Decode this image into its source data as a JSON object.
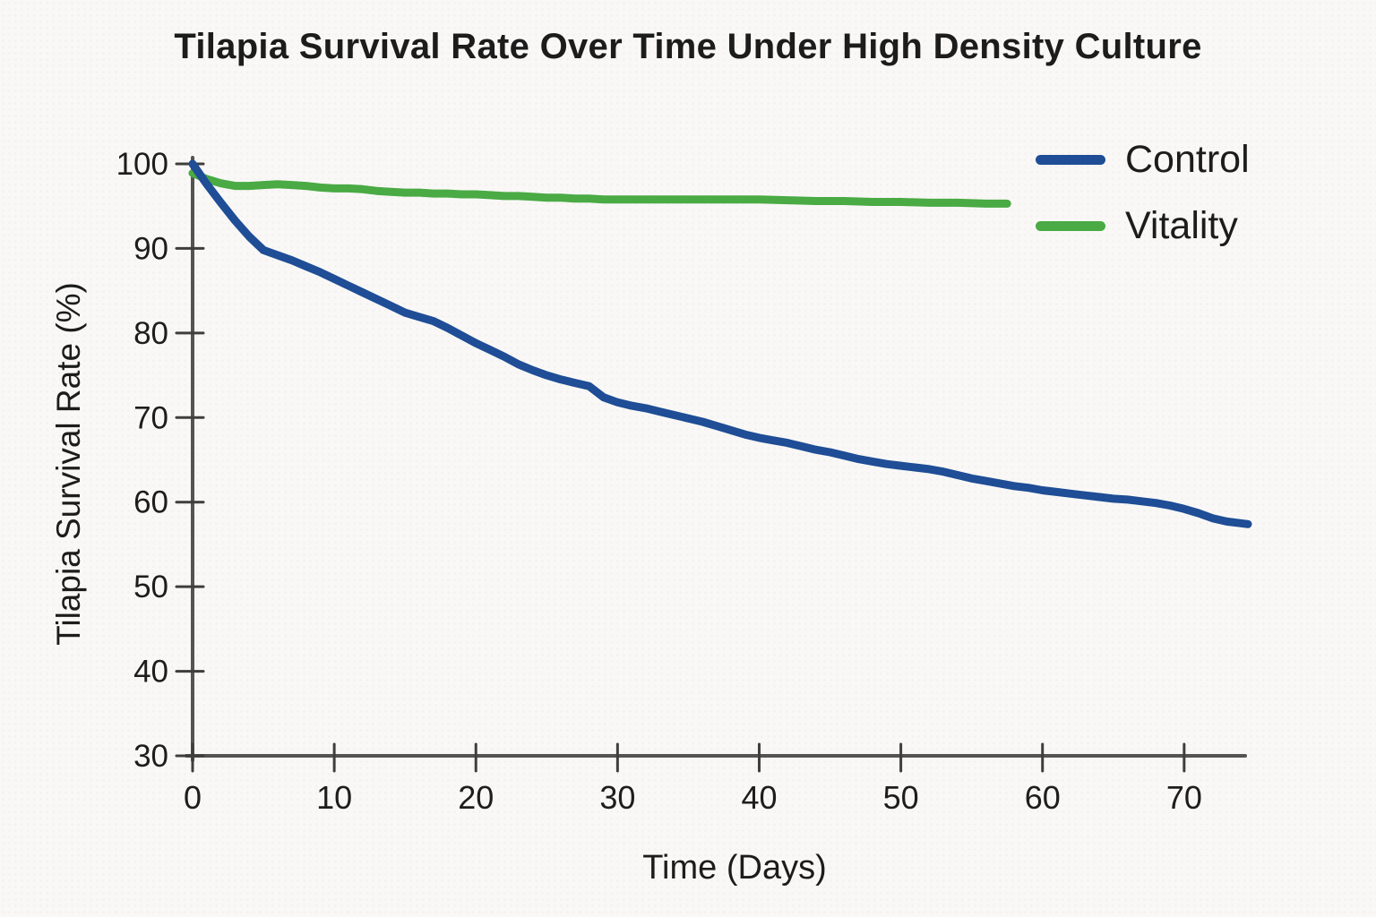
{
  "page_title": "Tilapia Survival Rate Over Time Under High Density Culture",
  "chart_data": {
    "type": "line",
    "title": "Tilapia Survival Rate Over Time Under High Density Culture",
    "xlabel": "Time (Days)",
    "ylabel": "Tilapia Survival Rate (%)",
    "xlim": [
      0,
      74.5
    ],
    "ylim": [
      30,
      100
    ],
    "x_ticks": [
      0,
      10,
      20,
      30,
      40,
      50,
      60,
      70
    ],
    "y_ticks": [
      30,
      40,
      50,
      60,
      70,
      80,
      90,
      100
    ],
    "grid": false,
    "legend_position": "upper right",
    "style": "hand-drawn",
    "axis_color": "#555350",
    "tick_color": "#3f3e3c",
    "series": [
      {
        "name": "Control",
        "color": "#1f4d96",
        "points": [
          [
            0,
            100
          ],
          [
            1,
            97.6
          ],
          [
            2,
            95.4
          ],
          [
            3,
            93.3
          ],
          [
            4,
            91.4
          ],
          [
            5,
            89.8
          ],
          [
            6,
            89.2
          ],
          [
            7,
            88.6
          ],
          [
            8,
            87.9
          ],
          [
            9,
            87.2
          ],
          [
            10,
            86.4
          ],
          [
            11,
            85.6
          ],
          [
            12,
            84.8
          ],
          [
            13,
            84.0
          ],
          [
            14,
            83.2
          ],
          [
            15,
            82.4
          ],
          [
            16,
            81.9
          ],
          [
            17,
            81.4
          ],
          [
            18,
            80.6
          ],
          [
            19,
            79.7
          ],
          [
            20,
            78.8
          ],
          [
            21,
            78.0
          ],
          [
            22,
            77.2
          ],
          [
            23,
            76.3
          ],
          [
            24,
            75.6
          ],
          [
            25,
            75.0
          ],
          [
            26,
            74.5
          ],
          [
            27,
            74.1
          ],
          [
            28,
            73.7
          ],
          [
            29,
            72.4
          ],
          [
            30,
            71.8
          ],
          [
            31,
            71.4
          ],
          [
            32,
            71.1
          ],
          [
            33,
            70.7
          ],
          [
            34,
            70.3
          ],
          [
            35,
            69.9
          ],
          [
            36,
            69.5
          ],
          [
            37,
            69.0
          ],
          [
            38,
            68.5
          ],
          [
            39,
            68.0
          ],
          [
            40,
            67.6
          ],
          [
            41,
            67.3
          ],
          [
            42,
            67.0
          ],
          [
            43,
            66.6
          ],
          [
            44,
            66.2
          ],
          [
            45,
            65.9
          ],
          [
            46,
            65.5
          ],
          [
            47,
            65.1
          ],
          [
            48,
            64.8
          ],
          [
            49,
            64.5
          ],
          [
            50,
            64.3
          ],
          [
            51,
            64.1
          ],
          [
            52,
            63.9
          ],
          [
            53,
            63.6
          ],
          [
            54,
            63.2
          ],
          [
            55,
            62.8
          ],
          [
            56,
            62.5
          ],
          [
            57,
            62.2
          ],
          [
            58,
            61.9
          ],
          [
            59,
            61.7
          ],
          [
            60,
            61.4
          ],
          [
            61,
            61.2
          ],
          [
            62,
            61.0
          ],
          [
            63,
            60.8
          ],
          [
            64,
            60.6
          ],
          [
            65,
            60.4
          ],
          [
            66,
            60.3
          ],
          [
            67,
            60.1
          ],
          [
            68,
            59.9
          ],
          [
            69,
            59.6
          ],
          [
            70,
            59.2
          ],
          [
            71,
            58.7
          ],
          [
            72,
            58.1
          ],
          [
            73,
            57.7
          ],
          [
            74,
            57.5
          ],
          [
            74.5,
            57.4
          ]
        ]
      },
      {
        "name": "Vitality",
        "color": "#4aaa44",
        "points": [
          [
            0,
            98.9
          ],
          [
            1,
            98.2
          ],
          [
            2,
            97.7
          ],
          [
            3,
            97.4
          ],
          [
            4,
            97.4
          ],
          [
            5,
            97.5
          ],
          [
            6,
            97.6
          ],
          [
            7,
            97.5
          ],
          [
            8,
            97.4
          ],
          [
            9,
            97.2
          ],
          [
            10,
            97.1
          ],
          [
            11,
            97.1
          ],
          [
            12,
            97.0
          ],
          [
            13,
            96.8
          ],
          [
            14,
            96.7
          ],
          [
            15,
            96.6
          ],
          [
            16,
            96.6
          ],
          [
            17,
            96.5
          ],
          [
            18,
            96.5
          ],
          [
            19,
            96.4
          ],
          [
            20,
            96.4
          ],
          [
            21,
            96.3
          ],
          [
            22,
            96.2
          ],
          [
            23,
            96.2
          ],
          [
            24,
            96.1
          ],
          [
            25,
            96.0
          ],
          [
            26,
            96.0
          ],
          [
            27,
            95.9
          ],
          [
            28,
            95.9
          ],
          [
            29,
            95.8
          ],
          [
            30,
            95.8
          ],
          [
            32,
            95.8
          ],
          [
            34,
            95.8
          ],
          [
            36,
            95.8
          ],
          [
            38,
            95.8
          ],
          [
            40,
            95.8
          ],
          [
            42,
            95.7
          ],
          [
            44,
            95.6
          ],
          [
            46,
            95.6
          ],
          [
            48,
            95.5
          ],
          [
            50,
            95.5
          ],
          [
            52,
            95.4
          ],
          [
            54,
            95.4
          ],
          [
            56,
            95.3
          ],
          [
            57.5,
            95.3
          ]
        ]
      }
    ]
  }
}
